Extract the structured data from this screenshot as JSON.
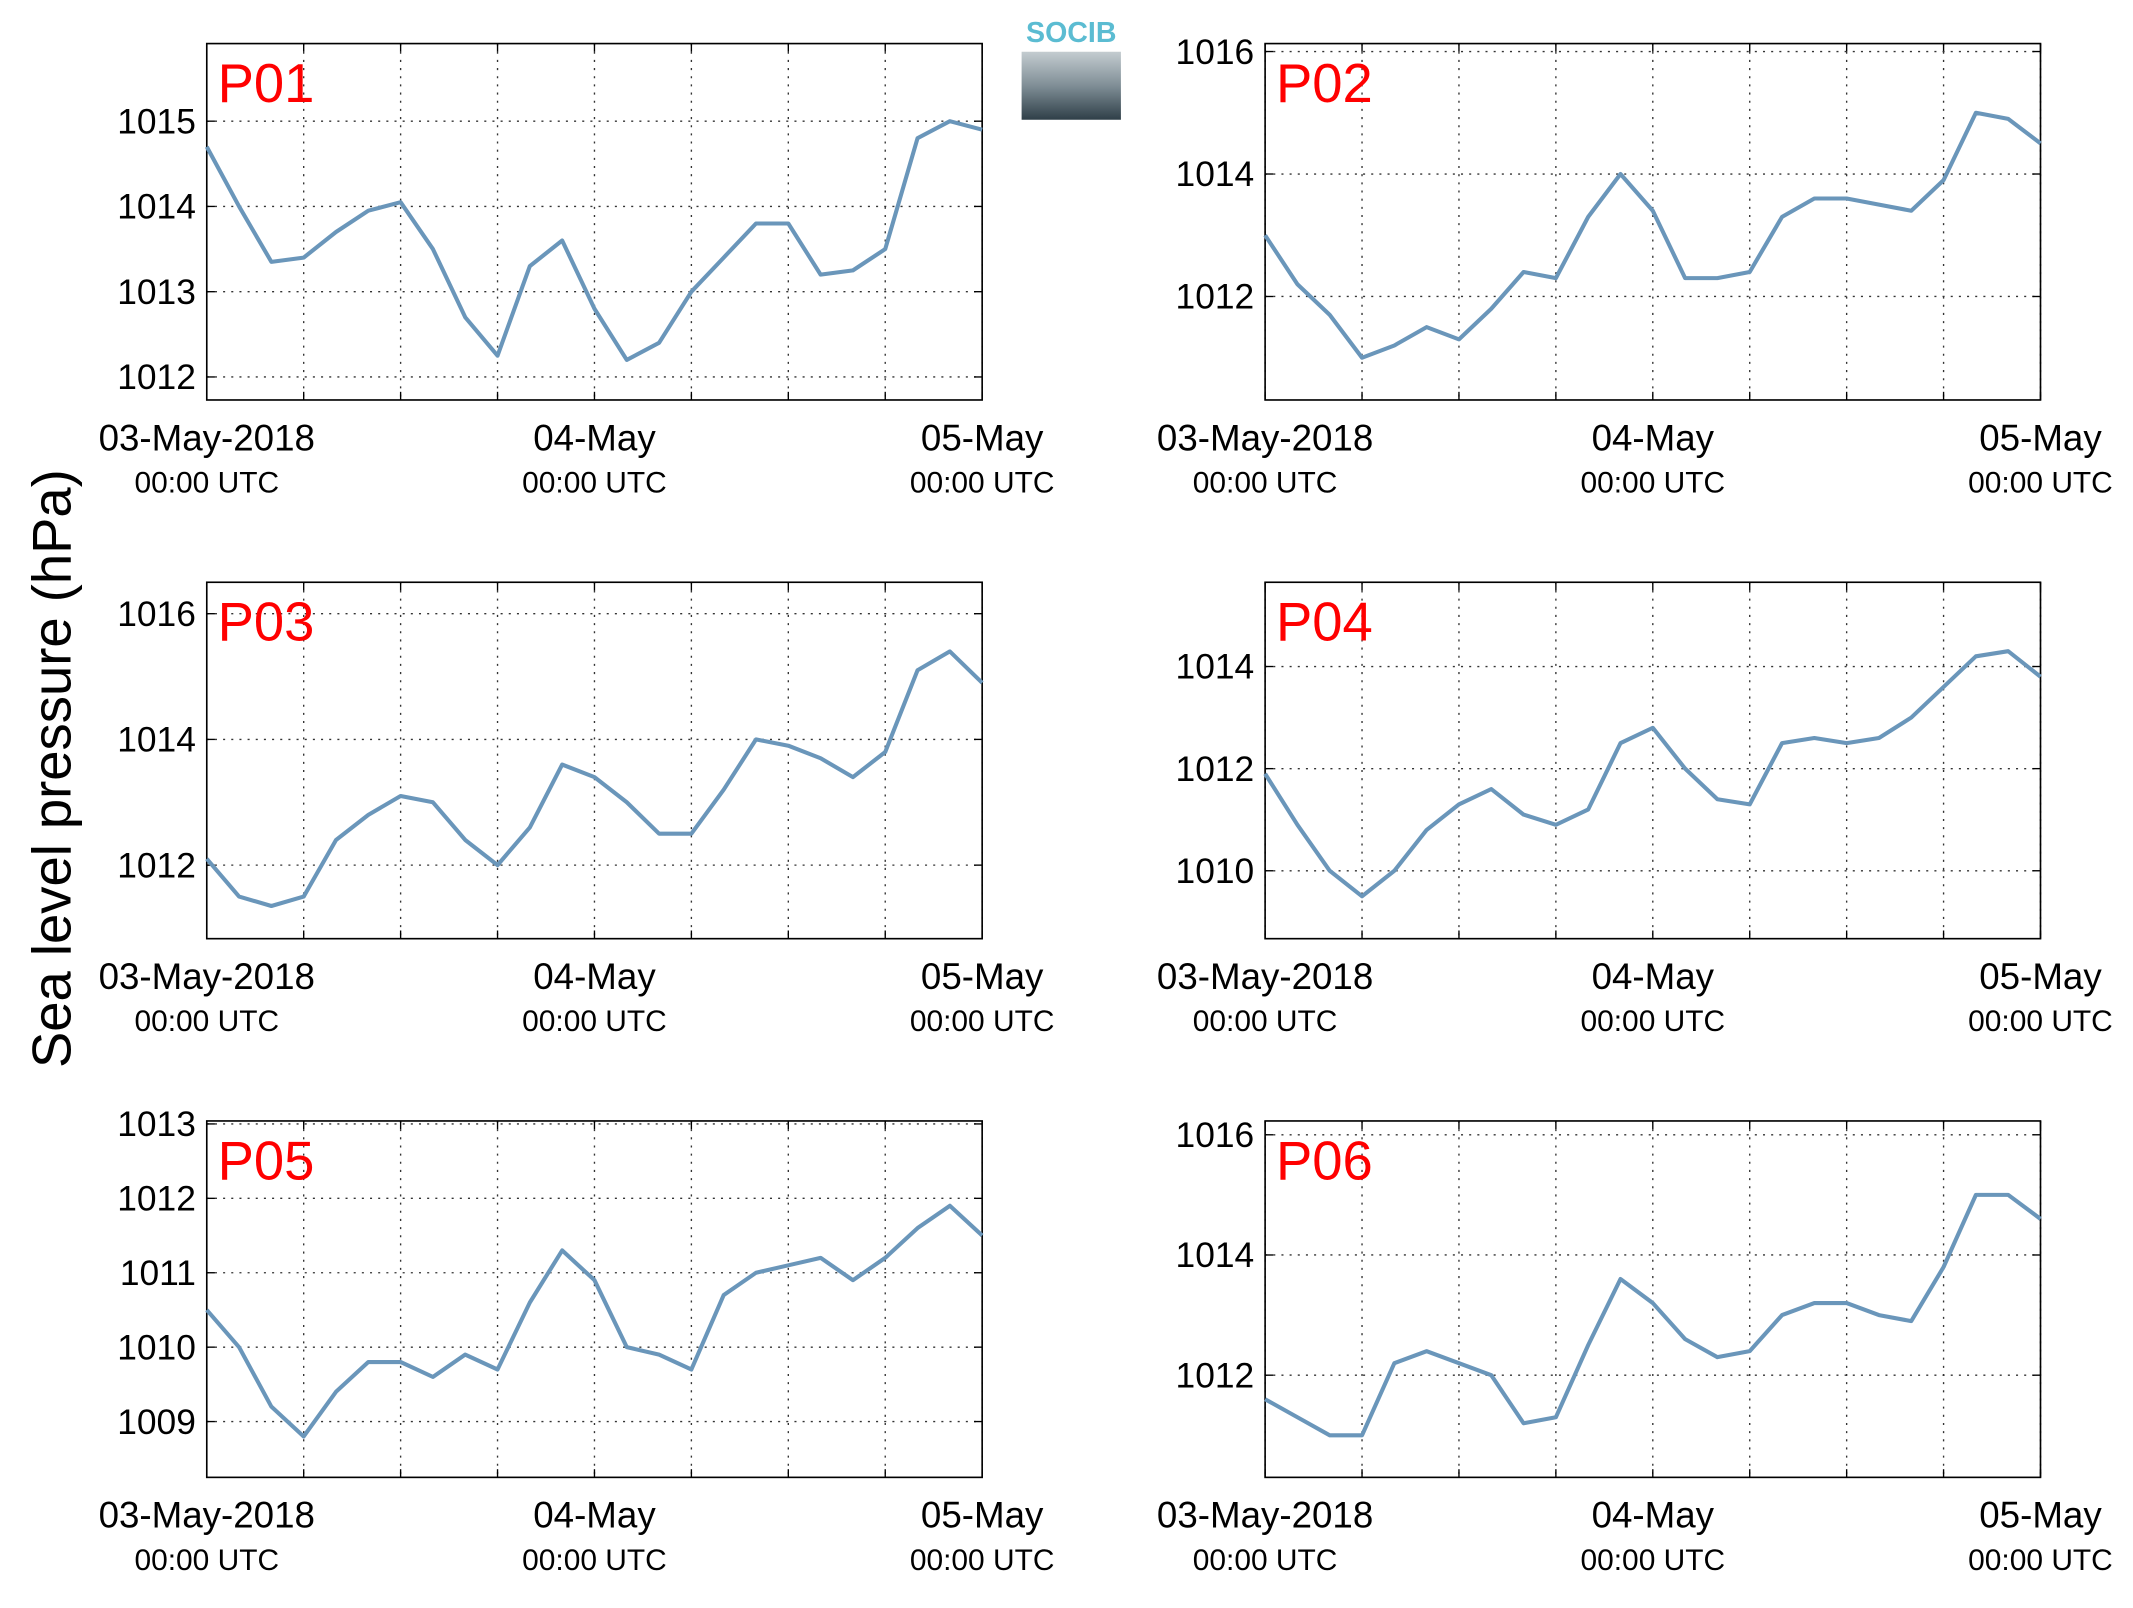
{
  "ylabel": "Sea level pressure (hPa)",
  "logo": "SOCIB",
  "chart_data": [
    {
      "type": "line",
      "title": "P01",
      "x": [
        0,
        2,
        4,
        6,
        8,
        10,
        12,
        14,
        16,
        18,
        20,
        22,
        24,
        26,
        28,
        30,
        32,
        34,
        36,
        38,
        40,
        42,
        44,
        46,
        48
      ],
      "series": [
        {
          "name": "P01",
          "color": "#6a96ba",
          "values": [
            1014.7,
            1014.0,
            1013.35,
            1013.4,
            1013.7,
            1013.95,
            1014.05,
            1013.5,
            1012.7,
            1012.25,
            1013.3,
            1013.6,
            1012.8,
            1012.2,
            1012.4,
            1013.0,
            1013.4,
            1013.8,
            1013.8,
            1013.2,
            1013.25,
            1013.5,
            1014.8,
            1015.0,
            1014.9
          ]
        }
      ],
      "xlim": [
        0,
        48
      ],
      "xticks": [
        {
          "value": 0,
          "label": "03-May-2018",
          "sublabel": "00:00 UTC"
        },
        {
          "value": 6,
          "label": null
        },
        {
          "value": 12,
          "label": null
        },
        {
          "value": 18,
          "label": null
        },
        {
          "value": 24,
          "label": "04-May",
          "sublabel": "00:00 UTC"
        },
        {
          "value": 30,
          "label": null
        },
        {
          "value": 36,
          "label": null
        },
        {
          "value": 42,
          "label": null
        },
        {
          "value": 48,
          "label": "05-May",
          "sublabel": "00:00 UTC"
        }
      ],
      "ylim": [
        1011.73,
        1015.91
      ],
      "yticks": [
        1012,
        1013,
        1014,
        1015
      ],
      "grid": true
    },
    {
      "type": "line",
      "title": "P02",
      "x": [
        0,
        2,
        4,
        6,
        8,
        10,
        12,
        14,
        16,
        18,
        20,
        22,
        24,
        26,
        28,
        30,
        32,
        34,
        36,
        38,
        40,
        42,
        44,
        46,
        48
      ],
      "series": [
        {
          "name": "P02",
          "color": "#6a96ba",
          "values": [
            1013.0,
            1012.2,
            1011.7,
            1011.0,
            1011.2,
            1011.5,
            1011.3,
            1011.8,
            1012.4,
            1012.3,
            1013.3,
            1014.0,
            1013.4,
            1012.3,
            1012.3,
            1012.4,
            1013.3,
            1013.6,
            1013.6,
            1013.5,
            1013.4,
            1013.9,
            1015.0,
            1014.9,
            1014.5
          ]
        }
      ],
      "xlim": [
        0,
        48
      ],
      "xticks": [
        {
          "value": 0,
          "label": "03-May-2018",
          "sublabel": "00:00 UTC"
        },
        {
          "value": 6,
          "label": null
        },
        {
          "value": 12,
          "label": null
        },
        {
          "value": 18,
          "label": null
        },
        {
          "value": 24,
          "label": "04-May",
          "sublabel": "00:00 UTC"
        },
        {
          "value": 30,
          "label": null
        },
        {
          "value": 36,
          "label": null
        },
        {
          "value": 42,
          "label": null
        },
        {
          "value": 48,
          "label": "05-May",
          "sublabel": "00:00 UTC"
        }
      ],
      "ylim": [
        1010.31,
        1016.13
      ],
      "yticks": [
        1012,
        1014,
        1016
      ],
      "grid": true
    },
    {
      "type": "line",
      "title": "P03",
      "x": [
        0,
        2,
        4,
        6,
        8,
        10,
        12,
        14,
        16,
        18,
        20,
        22,
        24,
        26,
        28,
        30,
        32,
        34,
        36,
        38,
        40,
        42,
        44,
        46,
        48
      ],
      "series": [
        {
          "name": "P03",
          "color": "#6a96ba",
          "values": [
            1012.1,
            1011.5,
            1011.35,
            1011.5,
            1012.4,
            1012.8,
            1013.1,
            1013.0,
            1012.4,
            1012.0,
            1012.6,
            1013.6,
            1013.4,
            1013.0,
            1012.5,
            1012.5,
            1013.2,
            1014.0,
            1013.9,
            1013.7,
            1013.4,
            1013.8,
            1015.1,
            1015.4,
            1014.9
          ]
        }
      ],
      "xlim": [
        0,
        48
      ],
      "xticks": [
        {
          "value": 0,
          "label": "03-May-2018",
          "sublabel": "00:00 UTC"
        },
        {
          "value": 6,
          "label": null
        },
        {
          "value": 12,
          "label": null
        },
        {
          "value": 18,
          "label": null
        },
        {
          "value": 24,
          "label": "04-May",
          "sublabel": "00:00 UTC"
        },
        {
          "value": 30,
          "label": null
        },
        {
          "value": 36,
          "label": null
        },
        {
          "value": 42,
          "label": null
        },
        {
          "value": 48,
          "label": "05-May",
          "sublabel": "00:00 UTC"
        }
      ],
      "ylim": [
        1010.83,
        1016.5
      ],
      "yticks": [
        1012,
        1014,
        1016
      ],
      "grid": true
    },
    {
      "type": "line",
      "title": "P04",
      "x": [
        0,
        2,
        4,
        6,
        8,
        10,
        12,
        14,
        16,
        18,
        20,
        22,
        24,
        26,
        28,
        30,
        32,
        34,
        36,
        38,
        40,
        42,
        44,
        46,
        48
      ],
      "series": [
        {
          "name": "P04",
          "color": "#6a96ba",
          "values": [
            1011.9,
            1010.9,
            1010.0,
            1009.5,
            1010.0,
            1010.8,
            1011.3,
            1011.6,
            1011.1,
            1010.9,
            1011.2,
            1012.5,
            1012.8,
            1012.0,
            1011.4,
            1011.3,
            1012.5,
            1012.6,
            1012.5,
            1012.6,
            1013.0,
            1013.6,
            1014.2,
            1014.3,
            1013.8
          ]
        }
      ],
      "xlim": [
        0,
        48
      ],
      "xticks": [
        {
          "value": 0,
          "label": "03-May-2018",
          "sublabel": "00:00 UTC"
        },
        {
          "value": 6,
          "label": null
        },
        {
          "value": 12,
          "label": null
        },
        {
          "value": 18,
          "label": null
        },
        {
          "value": 24,
          "label": "04-May",
          "sublabel": "00:00 UTC"
        },
        {
          "value": 30,
          "label": null
        },
        {
          "value": 36,
          "label": null
        },
        {
          "value": 42,
          "label": null
        },
        {
          "value": 48,
          "label": "05-May",
          "sublabel": "00:00 UTC"
        }
      ],
      "ylim": [
        1008.67,
        1015.65
      ],
      "yticks": [
        1010,
        1012,
        1014
      ],
      "grid": true
    },
    {
      "type": "line",
      "title": "P05",
      "x": [
        0,
        2,
        4,
        6,
        8,
        10,
        12,
        14,
        16,
        18,
        20,
        22,
        24,
        26,
        28,
        30,
        32,
        34,
        36,
        38,
        40,
        42,
        44,
        46,
        48
      ],
      "series": [
        {
          "name": "P05",
          "color": "#6a96ba",
          "values": [
            1010.5,
            1010.0,
            1009.2,
            1008.8,
            1009.4,
            1009.8,
            1009.8,
            1009.6,
            1009.9,
            1009.7,
            1010.6,
            1011.3,
            1010.9,
            1010.0,
            1009.9,
            1009.7,
            1010.7,
            1011.0,
            1011.1,
            1011.2,
            1010.9,
            1011.2,
            1011.6,
            1011.9,
            1011.5
          ]
        }
      ],
      "xlim": [
        0,
        48
      ],
      "xticks": [
        {
          "value": 0,
          "label": "03-May-2018",
          "sublabel": "00:00 UTC"
        },
        {
          "value": 6,
          "label": null
        },
        {
          "value": 12,
          "label": null
        },
        {
          "value": 18,
          "label": null
        },
        {
          "value": 24,
          "label": "04-May",
          "sublabel": "00:00 UTC"
        },
        {
          "value": 30,
          "label": null
        },
        {
          "value": 36,
          "label": null
        },
        {
          "value": 42,
          "label": null
        },
        {
          "value": 48,
          "label": "05-May",
          "sublabel": "00:00 UTC"
        }
      ],
      "ylim": [
        1008.25,
        1013.04
      ],
      "yticks": [
        1009,
        1010,
        1011,
        1012,
        1013
      ],
      "grid": true
    },
    {
      "type": "line",
      "title": "P06",
      "x": [
        0,
        2,
        4,
        6,
        8,
        10,
        12,
        14,
        16,
        18,
        20,
        22,
        24,
        26,
        28,
        30,
        32,
        34,
        36,
        38,
        40,
        42,
        44,
        46,
        48
      ],
      "series": [
        {
          "name": "P06",
          "color": "#6a96ba",
          "values": [
            1011.6,
            1011.3,
            1011.0,
            1011.0,
            1012.2,
            1012.4,
            1012.2,
            1012.0,
            1011.2,
            1011.3,
            1012.5,
            1013.6,
            1013.2,
            1012.6,
            1012.3,
            1012.4,
            1013.0,
            1013.2,
            1013.2,
            1013.0,
            1012.9,
            1013.8,
            1015.0,
            1015.0,
            1014.6
          ]
        }
      ],
      "xlim": [
        0,
        48
      ],
      "xticks": [
        {
          "value": 0,
          "label": "03-May-2018",
          "sublabel": "00:00 UTC"
        },
        {
          "value": 6,
          "label": null
        },
        {
          "value": 12,
          "label": null
        },
        {
          "value": 18,
          "label": null
        },
        {
          "value": 24,
          "label": "04-May",
          "sublabel": "00:00 UTC"
        },
        {
          "value": 30,
          "label": null
        },
        {
          "value": 36,
          "label": null
        },
        {
          "value": 42,
          "label": null
        },
        {
          "value": 48,
          "label": "05-May",
          "sublabel": "00:00 UTC"
        }
      ],
      "ylim": [
        1010.3,
        1016.23
      ],
      "yticks": [
        1012,
        1014,
        1016
      ],
      "grid": true
    }
  ]
}
